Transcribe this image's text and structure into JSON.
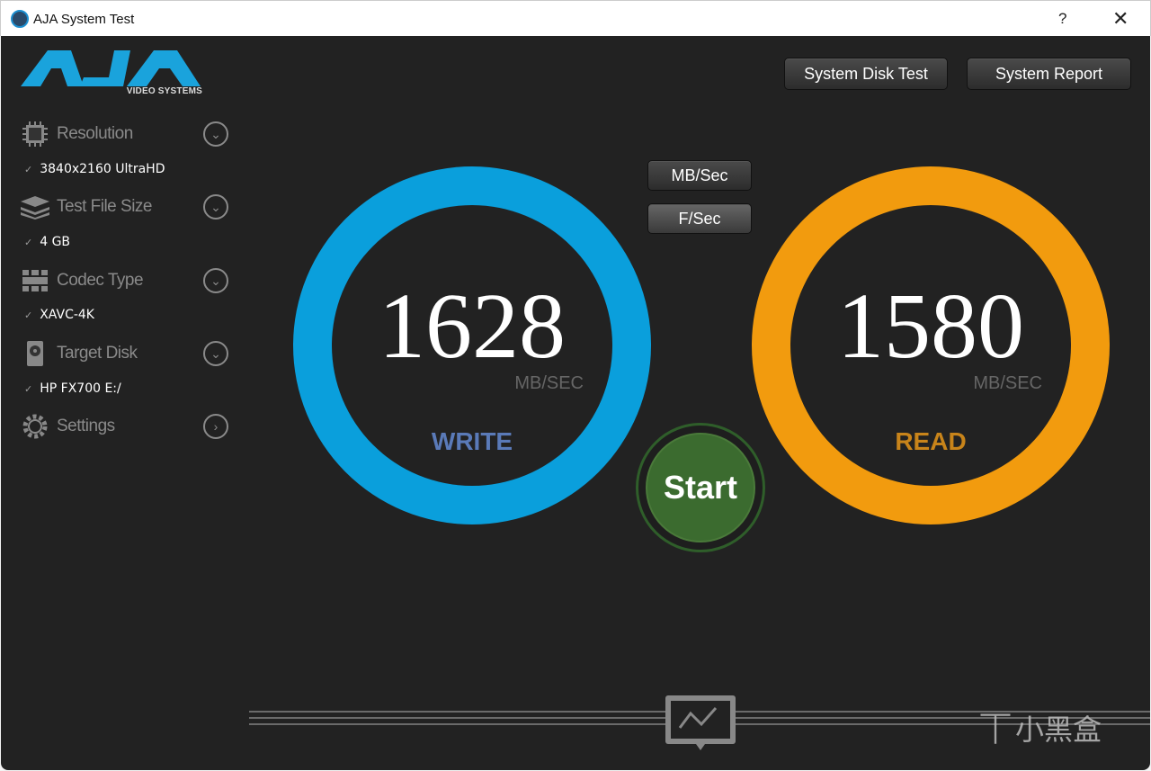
{
  "window": {
    "title": "AJA System Test",
    "help": "?",
    "close": "✕"
  },
  "logo": {
    "text": "AJA",
    "sub": "VIDEO SYSTEMS"
  },
  "sidebar": {
    "items": [
      {
        "label": "Resolution",
        "icon": "chip-icon",
        "value": "3840x2160 UltraHD"
      },
      {
        "label": "Test File Size",
        "icon": "layers-icon",
        "value": "4 GB"
      },
      {
        "label": "Codec Type",
        "icon": "film-icon",
        "value": "XAVC-4K"
      },
      {
        "label": "Target Disk",
        "icon": "disk-icon",
        "value": "HP FX700 E:/"
      },
      {
        "label": "Settings",
        "icon": "gear-icon"
      }
    ],
    "check": "✓"
  },
  "toolbar": {
    "disk_test": "System Disk Test",
    "report": "System Report",
    "mbsec": "MB/Sec",
    "fsec": "F/Sec"
  },
  "write": {
    "value": "1628",
    "unit": "MB/SEC",
    "label": "WRITE",
    "color": "#0a9fdc"
  },
  "read": {
    "value": "1580",
    "unit": "MB/SEC",
    "label": "READ",
    "color": "#f29b0e"
  },
  "start": {
    "label": "Start",
    "color": "#3b6b2f"
  },
  "watermark": "小黑盒"
}
